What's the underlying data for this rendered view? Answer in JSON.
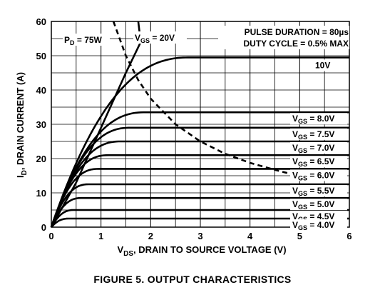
{
  "figure_caption": "FIGURE 5.  OUTPUT CHARACTERISTICS",
  "chart_data": {
    "type": "line",
    "xlabel": {
      "main": "V",
      "sub": "DS",
      "rest": ", DRAIN TO SOURCE VOLTAGE (V)"
    },
    "ylabel": {
      "main": "I",
      "sub": "D",
      "rest": ", DRAIN CURRENT (A)"
    },
    "xlim": [
      0,
      6
    ],
    "ylim": [
      0,
      60
    ],
    "xticks": [
      0,
      1,
      2,
      3,
      4,
      5,
      6
    ],
    "yticks": [
      0,
      10,
      20,
      30,
      40,
      50,
      60
    ],
    "grid": true,
    "annotations": {
      "pulse_duration": "PULSE DURATION = 80µs",
      "duty_cycle": "DUTY CYCLE = 0.5% MAX",
      "pd": {
        "main": "P",
        "sub": "D",
        "rest": " = 75W"
      },
      "vgs20": {
        "main": "V",
        "sub": "GS",
        "rest": " = 20V"
      }
    },
    "curves": [
      {
        "name": "10V",
        "prefix": "",
        "sat": 49.5,
        "vknee": 2.8
      },
      {
        "name": "8.0V",
        "prefix": "GS",
        "sat": 33.5,
        "vknee": 1.9
      },
      {
        "name": "7.5V",
        "prefix": "GS",
        "sat": 29,
        "vknee": 1.6
      },
      {
        "name": "7.0V",
        "prefix": "GS",
        "sat": 25,
        "vknee": 1.4
      },
      {
        "name": "6.5V",
        "prefix": "GS",
        "sat": 21,
        "vknee": 1.15
      },
      {
        "name": "6.0V",
        "prefix": "GS",
        "sat": 17,
        "vknee": 0.95
      },
      {
        "name": "5.5V",
        "prefix": "GS",
        "sat": 12.5,
        "vknee": 0.75
      },
      {
        "name": "5.0V",
        "prefix": "GS",
        "sat": 8.5,
        "vknee": 0.6
      },
      {
        "name": "4.5V",
        "prefix": "GS",
        "sat": 5,
        "vknee": 0.45
      },
      {
        "name": "4.0V",
        "prefix": "GS",
        "sat": 2.5,
        "vknee": 0.35
      }
    ],
    "vgs20_line": [
      [
        0,
        0
      ],
      [
        0.5,
        13
      ],
      [
        1.0,
        29
      ],
      [
        1.5,
        45
      ],
      [
        1.8,
        54
      ],
      [
        1.75,
        60
      ]
    ],
    "vgs20_bend": [
      [
        0,
        0
      ],
      [
        0.5,
        14
      ],
      [
        1.0,
        28
      ],
      [
        1.4,
        37
      ],
      [
        1.8,
        45
      ],
      [
        2.2,
        48.5
      ],
      [
        2.8,
        49.5
      ]
    ],
    "pd_curve": [
      [
        1.25,
        60
      ],
      [
        1.5,
        50
      ],
      [
        1.75,
        42.9
      ],
      [
        2,
        37.5
      ],
      [
        2.5,
        30
      ],
      [
        3,
        25
      ],
      [
        3.5,
        21.4
      ],
      [
        4,
        18.75
      ],
      [
        4.5,
        16.7
      ],
      [
        4.75,
        15.8
      ]
    ]
  }
}
